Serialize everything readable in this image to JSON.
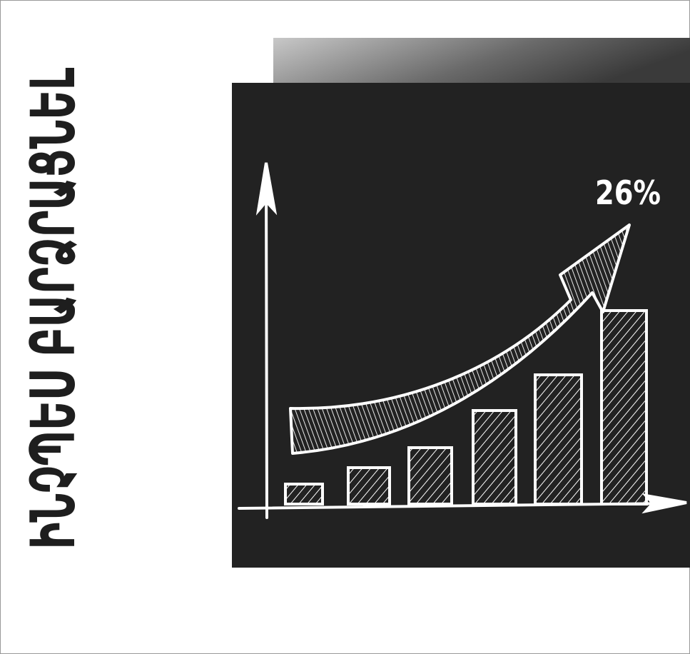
{
  "header": {
    "title": "ԻՆՉՊԵՍ ԲԱՐՁՐԱՑՆԵԼ"
  },
  "illustration": {
    "label": "26%"
  }
}
